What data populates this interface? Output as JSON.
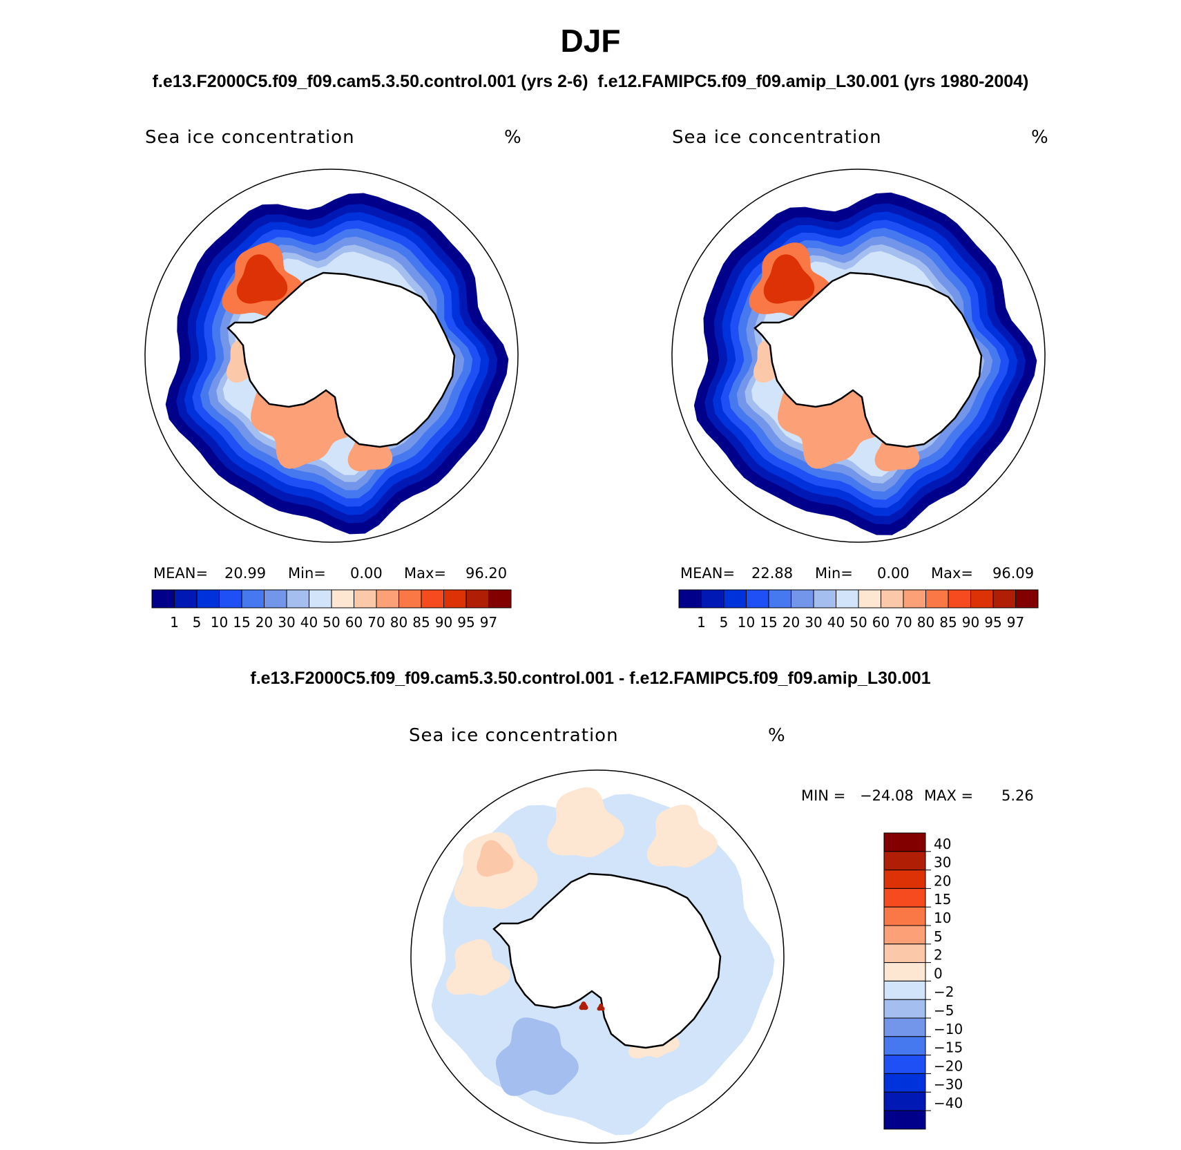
{
  "title": "DJF",
  "subtitle_top": "f.e13.F2000C5.f09_f09.cam5.3.50.control.001 (yrs 2-6)  f.e12.FAMIPC5.f09_f09.amip_L30.001 (yrs 1980-2004)",
  "subtitle_diff": "f.e13.F2000C5.f09_f09.cam5.3.50.control.001 - f.e12.FAMIPC5.f09_f09.amip_L30.001",
  "panels": [
    {
      "variable": "Sea ice concentration",
      "units": "%",
      "stats": {
        "mean_label": "MEAN=",
        "mean": "20.99",
        "min_label": "Min=",
        "min": "0.00",
        "max_label": "Max=",
        "max": "96.20"
      }
    },
    {
      "variable": "Sea ice concentration",
      "units": "%",
      "stats": {
        "mean_label": "MEAN=",
        "mean": "22.88",
        "min_label": "Min=",
        "min": "0.00",
        "max_label": "Max=",
        "max": "96.09"
      }
    }
  ],
  "diff_panel": {
    "variable": "Sea ice concentration",
    "units": "%",
    "min_label": "MIN =",
    "min": "−24.08",
    "max_label": "MAX =",
    "max": "5.26"
  },
  "colorbar_levels": [
    "1",
    "5",
    "10",
    "15",
    "20",
    "30",
    "40",
    "50",
    "60",
    "70",
    "80",
    "85",
    "90",
    "95",
    "97"
  ],
  "colorbar_colors": [
    "#00008b",
    "#0019b4",
    "#0032dc",
    "#1e50f5",
    "#4678f0",
    "#7396eb",
    "#a5bef0",
    "#d2e4fa",
    "#fde6d2",
    "#fcc8aa",
    "#fca078",
    "#fa7846",
    "#f54b1e",
    "#dc3205",
    "#af1e05",
    "#820000"
  ],
  "diff_levels": [
    "40",
    "30",
    "20",
    "15",
    "10",
    "5",
    "2",
    "0",
    "−2",
    "−5",
    "−10",
    "−15",
    "−20",
    "−30",
    "−40"
  ],
  "diff_colors": [
    "#820000",
    "#af1e05",
    "#dc3205",
    "#f54b1e",
    "#fa7846",
    "#fca078",
    "#fcc8aa",
    "#fde6d2",
    "#d2e4fa",
    "#a5bef0",
    "#7396eb",
    "#4678f0",
    "#1e50f5",
    "#0032dc",
    "#0019b4",
    "#00008b"
  ]
}
